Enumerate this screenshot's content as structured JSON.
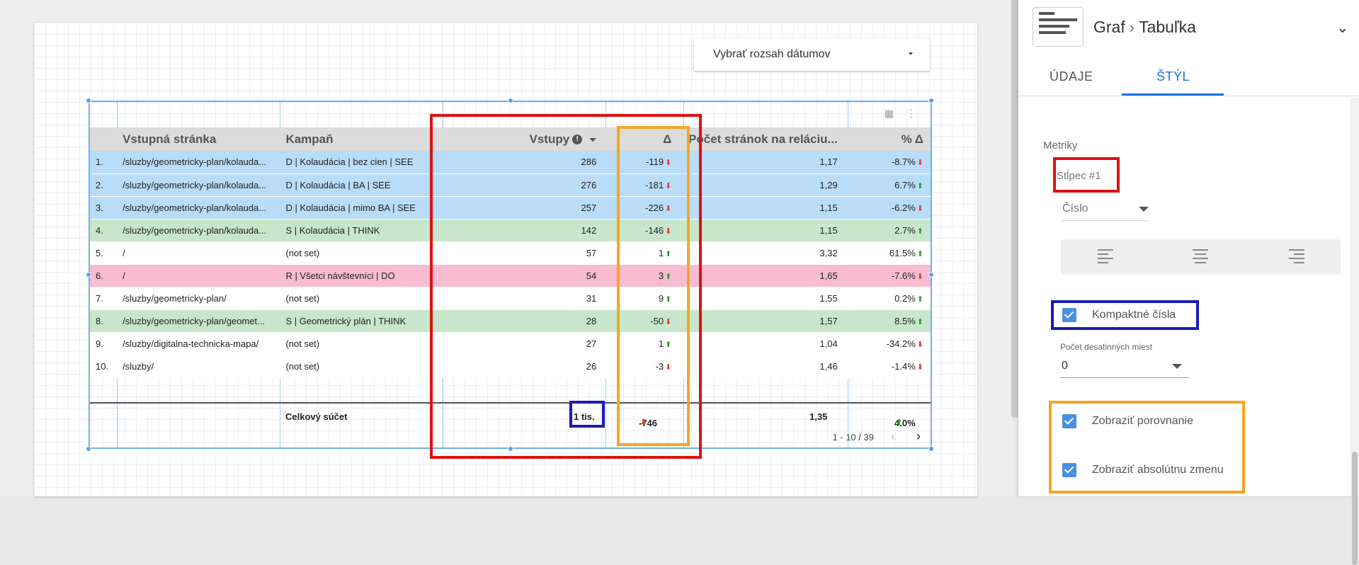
{
  "date_picker": {
    "label": "Vybrať rozsah dátumov"
  },
  "table": {
    "headers": [
      "Vstupná stránka",
      "Kampaň",
      "Vstupy",
      "Δ",
      "Počet stránok na reláciu...",
      "% Δ"
    ],
    "info_icon": "info-icon",
    "rows": [
      {
        "idx": "1.",
        "page": "/sluzby/geometricky-plan/kolauda...",
        "campaign": "D | Kolaudácia | bez cien | SEE",
        "vstupy": "286",
        "delta": "-119",
        "delta_dir": "down",
        "pocet": "1,17",
        "pct": "-8.7%",
        "pct_dir": "down",
        "color": "blue"
      },
      {
        "idx": "2.",
        "page": "/sluzby/geometricky-plan/kolauda...",
        "campaign": "D | Kolaudácia | BA | SEE",
        "vstupy": "276",
        "delta": "-181",
        "delta_dir": "down",
        "pocet": "1,29",
        "pct": "6.7%",
        "pct_dir": "up",
        "color": "blue"
      },
      {
        "idx": "3.",
        "page": "/sluzby/geometricky-plan/kolauda...",
        "campaign": "D | Kolaudácia | mimo BA | SEE",
        "vstupy": "257",
        "delta": "-226",
        "delta_dir": "down",
        "pocet": "1,15",
        "pct": "-6.2%",
        "pct_dir": "down",
        "color": "blue"
      },
      {
        "idx": "4.",
        "page": "/sluzby/geometricky-plan/kolauda...",
        "campaign": "S | Kolaudácia | THINK",
        "vstupy": "142",
        "delta": "-146",
        "delta_dir": "down",
        "pocet": "1,15",
        "pct": "2.7%",
        "pct_dir": "up",
        "color": "green"
      },
      {
        "idx": "5.",
        "page": "/",
        "campaign": "(not set)",
        "vstupy": "57",
        "delta": "1",
        "delta_dir": "up",
        "pocet": "3,32",
        "pct": "61.5%",
        "pct_dir": "up",
        "color": "white"
      },
      {
        "idx": "6.",
        "page": "/",
        "campaign": "R | Všetci návštevníci | DO",
        "vstupy": "54",
        "delta": "3",
        "delta_dir": "up",
        "pocet": "1,65",
        "pct": "-7.6%",
        "pct_dir": "down",
        "color": "pink"
      },
      {
        "idx": "7.",
        "page": "/sluzby/geometricky-plan/",
        "campaign": "(not set)",
        "vstupy": "31",
        "delta": "9",
        "delta_dir": "up",
        "pocet": "1,55",
        "pct": "0.2%",
        "pct_dir": "up",
        "color": "white"
      },
      {
        "idx": "8.",
        "page": "/sluzby/geometricky-plan/geomet...",
        "campaign": "S | Geometrický plán | THINK",
        "vstupy": "28",
        "delta": "-50",
        "delta_dir": "down",
        "pocet": "1,57",
        "pct": "8.5%",
        "pct_dir": "up",
        "color": "green"
      },
      {
        "idx": "9.",
        "page": "/sluzby/digitalna-technicka-mapa/",
        "campaign": "(not set)",
        "vstupy": "27",
        "delta": "1",
        "delta_dir": "up",
        "pocet": "1,04",
        "pct": "-34.2%",
        "pct_dir": "down",
        "color": "white"
      },
      {
        "idx": "10.",
        "page": "/sluzby/",
        "campaign": "(not set)",
        "vstupy": "26",
        "delta": "-3",
        "delta_dir": "down",
        "pocet": "1,46",
        "pct": "-1.4%",
        "pct_dir": "down",
        "color": "white"
      }
    ],
    "total": {
      "label": "Celkový súčet",
      "vstupy": "1 tis.",
      "delta": "-746",
      "pocet": "1,35",
      "pct": "4.0%"
    },
    "pager": "1 - 10 / 39",
    "row_colors": {
      "blue": "#b9dcf8",
      "green": "#c8e6c9",
      "pink": "#f8bbd0",
      "white": "#ffffff"
    }
  },
  "panel": {
    "breadcrumb_root": "Graf",
    "breadcrumb_current": "Tabuľka",
    "tabs": [
      "ÚDAJE",
      "ŠTÝL"
    ],
    "active_tab": "ŠTÝL",
    "section_label": "Metriky",
    "column_label": "Stĺpec #1",
    "number_type": "Číslo",
    "compact_label": "Kompaktné čísla",
    "compact_checked": true,
    "decimals_label": "Počet desatinných miest",
    "decimals_value": "0",
    "show_compare_label": "Zobraziť porovnanie",
    "show_compare_checked": true,
    "show_abs_label": "Zobraziť absolútnu zmenu",
    "show_abs_checked": true
  },
  "annotation_colors": {
    "red": "#d11",
    "orange": "#f5a623",
    "blue": "#1a1ab8"
  }
}
